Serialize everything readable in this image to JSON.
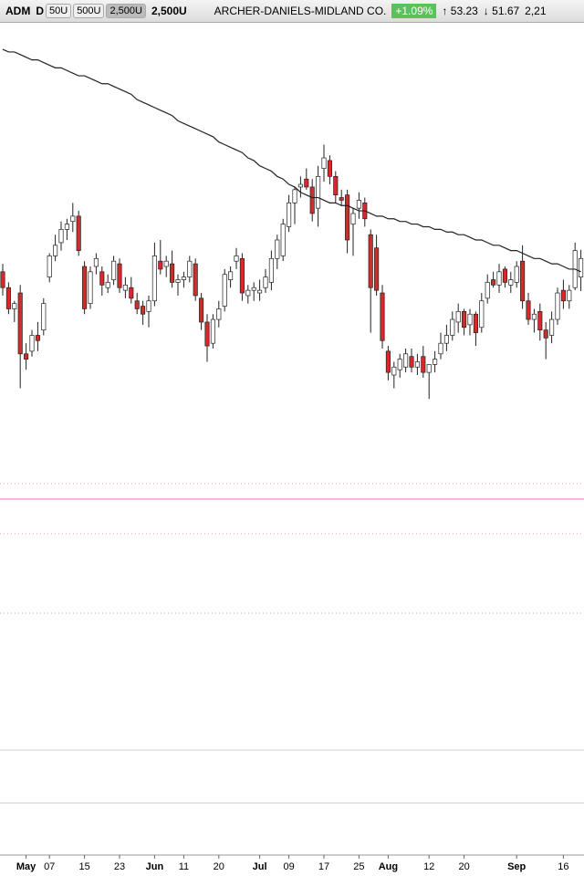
{
  "toolbar": {
    "symbol": "ADM",
    "period": "D",
    "sizes": [
      "50U",
      "500U",
      "2,500U"
    ],
    "size": "2,500U",
    "company": "ARCHER-DANIELS-MIDLAND CO.",
    "change": "+1.09%",
    "high": "53.23",
    "low": "51.67",
    "volume": "2,21"
  },
  "chart_data": {
    "type": "candlestick",
    "categories": [
      null,
      null,
      null,
      null,
      "May",
      null,
      null,
      null,
      "07",
      null,
      null,
      null,
      null,
      null,
      "15",
      null,
      null,
      null,
      null,
      null,
      "23",
      null,
      null,
      null,
      null,
      null,
      "Jun",
      null,
      null,
      null,
      null,
      "11",
      null,
      null,
      null,
      null,
      null,
      "20",
      null,
      null,
      null,
      null,
      null,
      null,
      "Jul",
      null,
      null,
      null,
      null,
      "09",
      null,
      null,
      null,
      null,
      null,
      "17",
      null,
      null,
      null,
      null,
      null,
      "25",
      null,
      null,
      null,
      null,
      "Aug",
      null,
      null,
      null,
      null,
      null,
      null,
      "12",
      null,
      null,
      null,
      null,
      null,
      "20",
      null,
      null,
      null,
      null,
      null,
      null,
      null,
      null,
      "Sep",
      null,
      null,
      null,
      null,
      null,
      null,
      null,
      "16",
      null,
      null,
      null
    ],
    "open": [
      52.4,
      51.8,
      51.0,
      51.6,
      49.3,
      49.4,
      50.0,
      50.2,
      52.2,
      53.0,
      53.5,
      54.0,
      54.3,
      54.5,
      52.6,
      51.2,
      52.6,
      52.4,
      51.8,
      52.1,
      52.7,
      51.7,
      51.8,
      51.3,
      51.1,
      50.9,
      51.3,
      52.8,
      52.6,
      52.7,
      52.0,
      52.1,
      52.2,
      52.7,
      51.4,
      50.5,
      49.7,
      50.6,
      51.1,
      52.1,
      52.8,
      52.9,
      51.5,
      51.7,
      51.6,
      51.8,
      52.0,
      52.9,
      53.0,
      54.1,
      55.0,
      55.6,
      55.9,
      55.6,
      54.8,
      56.3,
      56.6,
      56.0,
      55.2,
      55.3,
      54.2,
      54.8,
      55.0,
      53.8,
      53.3,
      51.6,
      49.4,
      48.5,
      48.7,
      48.8,
      49.2,
      48.8,
      49.2,
      48.6,
      48.9,
      49.3,
      49.7,
      50.0,
      50.5,
      50.9,
      50.4,
      50.8,
      50.3,
      51.4,
      52.1,
      51.9,
      52.5,
      51.9,
      52.0,
      52.8,
      51.3,
      50.6,
      50.9,
      50.2,
      50.0,
      50.6,
      51.7,
      51.3,
      51.8,
      52.2
    ],
    "high": [
      52.7,
      52.0,
      51.3,
      51.9,
      49.7,
      50.2,
      50.5,
      51.4,
      53.1,
      53.8,
      54.3,
      54.4,
      55.0,
      54.7,
      52.8,
      52.6,
      53.1,
      52.6,
      52.3,
      53.0,
      52.9,
      52.2,
      52.2,
      51.6,
      51.3,
      51.5,
      53.5,
      53.6,
      53.0,
      53.2,
      52.3,
      52.4,
      53.0,
      52.9,
      51.6,
      50.8,
      50.8,
      51.3,
      52.5,
      52.6,
      53.3,
      53.1,
      51.9,
      52.0,
      52.1,
      52.5,
      53.2,
      53.8,
      54.4,
      55.3,
      55.6,
      56.0,
      56.3,
      55.9,
      56.4,
      57.2,
      56.8,
      56.2,
      55.5,
      55.5,
      54.8,
      55.4,
      55.2,
      54.0,
      53.8,
      51.9,
      49.6,
      49.0,
      49.3,
      49.5,
      49.5,
      49.3,
      49.6,
      48.9,
      49.4,
      50.1,
      50.4,
      50.9,
      51.2,
      51.0,
      51.0,
      50.9,
      51.6,
      52.3,
      52.4,
      52.7,
      52.6,
      52.4,
      52.8,
      53.4,
      51.6,
      51.0,
      51.2,
      50.5,
      50.9,
      51.8,
      52.1,
      51.9,
      53.5,
      53.23
    ],
    "low": [
      51.5,
      50.8,
      50.5,
      48.0,
      48.7,
      49.2,
      49.4,
      50.0,
      52.0,
      52.8,
      53.2,
      53.6,
      53.9,
      53.0,
      50.8,
      51.0,
      52.3,
      51.5,
      51.6,
      51.9,
      51.6,
      51.4,
      51.2,
      50.8,
      50.4,
      50.3,
      51.1,
      52.3,
      52.2,
      51.8,
      51.5,
      51.8,
      52.0,
      51.3,
      50.2,
      49.0,
      49.5,
      50.3,
      50.9,
      51.8,
      52.5,
      51.3,
      51.2,
      51.3,
      51.3,
      51.6,
      51.7,
      52.5,
      52.8,
      53.9,
      54.2,
      55.2,
      55.5,
      54.3,
      54.1,
      55.8,
      55.7,
      55.0,
      54.9,
      53.1,
      53.0,
      54.4,
      54.1,
      50.1,
      51.5,
      49.5,
      48.3,
      48.0,
      48.4,
      48.6,
      48.6,
      48.5,
      48.4,
      47.6,
      48.6,
      49.1,
      49.4,
      49.8,
      50.1,
      50.0,
      50.0,
      49.6,
      50.1,
      51.2,
      51.8,
      51.6,
      51.8,
      51.6,
      51.8,
      51.0,
      50.4,
      50.1,
      49.8,
      49.1,
      49.7,
      50.4,
      51.0,
      51.0,
      51.7,
      51.67
    ],
    "close": [
      51.8,
      51.0,
      51.2,
      49.3,
      49.1,
      50.0,
      49.8,
      51.2,
      53.0,
      53.4,
      54.0,
      54.2,
      54.5,
      53.2,
      51.0,
      52.4,
      52.9,
      51.9,
      52.0,
      52.8,
      51.8,
      51.9,
      51.4,
      51.0,
      50.8,
      51.3,
      53.0,
      52.5,
      52.8,
      52.0,
      52.1,
      52.2,
      52.8,
      51.5,
      50.5,
      49.6,
      50.6,
      51.0,
      52.3,
      52.4,
      53.0,
      51.6,
      51.7,
      51.8,
      51.7,
      52.2,
      52.9,
      53.6,
      54.2,
      55.0,
      55.5,
      55.7,
      55.6,
      54.6,
      56.0,
      56.7,
      56.0,
      55.3,
      55.1,
      53.6,
      54.6,
      55.1,
      54.4,
      51.8,
      51.7,
      49.8,
      48.6,
      48.8,
      49.1,
      49.3,
      48.8,
      49.0,
      48.6,
      48.9,
      49.1,
      49.7,
      50.0,
      50.6,
      50.9,
      50.3,
      50.8,
      50.1,
      51.3,
      52.0,
      51.9,
      52.4,
      52.0,
      52.1,
      52.6,
      51.3,
      50.6,
      50.8,
      50.2,
      49.9,
      50.6,
      51.6,
      51.3,
      51.7,
      53.2,
      52.9
    ],
    "moving_average": {
      "color": "#222222",
      "values": [
        60.8,
        60.7,
        60.7,
        60.6,
        60.5,
        60.4,
        60.4,
        60.3,
        60.2,
        60.1,
        60.1,
        60.0,
        59.9,
        59.8,
        59.8,
        59.7,
        59.6,
        59.5,
        59.5,
        59.4,
        59.3,
        59.2,
        59.1,
        58.9,
        58.8,
        58.7,
        58.6,
        58.5,
        58.4,
        58.3,
        58.1,
        58.0,
        57.9,
        57.8,
        57.7,
        57.6,
        57.5,
        57.3,
        57.2,
        57.1,
        57.0,
        56.9,
        56.7,
        56.6,
        56.4,
        56.3,
        56.2,
        56.0,
        55.9,
        55.7,
        55.6,
        55.4,
        55.3,
        55.2,
        55.2,
        55.1,
        55.0,
        55.0,
        54.9,
        54.9,
        54.8,
        54.7,
        54.7,
        54.6,
        54.5,
        54.5,
        54.4,
        54.4,
        54.3,
        54.3,
        54.2,
        54.2,
        54.1,
        54.1,
        54.0,
        54.0,
        53.9,
        53.9,
        53.8,
        53.8,
        53.7,
        53.6,
        53.6,
        53.5,
        53.4,
        53.4,
        53.3,
        53.2,
        53.2,
        53.1,
        53.0,
        52.9,
        52.9,
        52.8,
        52.7,
        52.7,
        52.6,
        52.5,
        52.5,
        52.4
      ]
    },
    "up_color": "#ffffff",
    "down_color": "#d42a2a",
    "ylim": [
      44.4,
      61.8
    ]
  }
}
